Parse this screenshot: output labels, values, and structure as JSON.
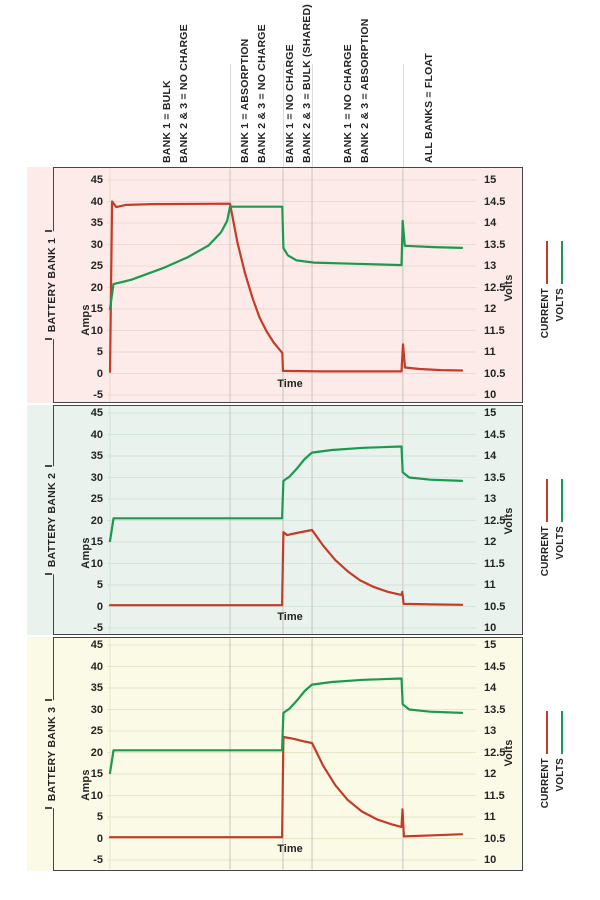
{
  "colors": {
    "current": "#c43b27",
    "volts": "#1a9a4e",
    "panel_border": "#444444",
    "phase_gridline": "#c9c3bd",
    "top_gridline": "#dcdcdc"
  },
  "phase_labels": [
    {
      "lines": [
        "BANK 1 = BULK",
        "BANK 2 & 3 = NO CHARGE"
      ]
    },
    {
      "lines": [
        "BANK 1 = ABSORPTION",
        "BANK 2 & 3 = NO CHARGE"
      ]
    },
    {
      "lines": [
        "BANK 1 = NO CHARGE",
        "BANK 2 & 3 = BULK (SHARED)"
      ]
    },
    {
      "lines": [
        "BANK 1 = NO CHARGE",
        "BANK 2 & 3 = ABSORPTION"
      ]
    },
    {
      "lines": [
        "ALL BANKS = FLOAT"
      ]
    }
  ],
  "panels": [
    {
      "bank_label": "BATTERY BANK 1",
      "bg": "#fcebe8",
      "grid_color": "#f0d8d2",
      "amps_axis": {
        "title": "Amps",
        "ticks": [
          "45",
          "40",
          "35",
          "30",
          "25",
          "20",
          "15",
          "10",
          "5",
          "0",
          "-5"
        ]
      },
      "volts_axis": {
        "title": "Volts",
        "ticks": [
          "15",
          "14.5",
          "14",
          "13.5",
          "13",
          "12.5",
          "12",
          "11.5",
          "11",
          "10.5",
          "10"
        ]
      },
      "x_axis_label": "Time",
      "legend": [
        {
          "label": "CURRENT",
          "color": "#c43b27"
        },
        {
          "label": "VOLTS",
          "color": "#1a9a4e"
        }
      ]
    },
    {
      "bank_label": "BATTERY BANK 2",
      "bg": "#e9f2ed",
      "grid_color": "#d3e4da",
      "amps_axis": {
        "title": "Amps",
        "ticks": [
          "45",
          "40",
          "35",
          "30",
          "25",
          "20",
          "15",
          "10",
          "5",
          "0",
          "-5"
        ]
      },
      "volts_axis": {
        "title": "Volts",
        "ticks": [
          "15",
          "14.5",
          "14",
          "13.5",
          "13",
          "12.5",
          "12",
          "11.5",
          "11",
          "10.5",
          "10"
        ]
      },
      "x_axis_label": "Time",
      "legend": [
        {
          "label": "CURRENT",
          "color": "#c43b27"
        },
        {
          "label": "VOLTS",
          "color": "#1a9a4e"
        }
      ]
    },
    {
      "bank_label": "BATTERY BANK 3",
      "bg": "#fbfae6",
      "grid_color": "#e6e6c8",
      "amps_axis": {
        "title": "Amps",
        "ticks": [
          "45",
          "40",
          "35",
          "30",
          "25",
          "20",
          "15",
          "10",
          "5",
          "0",
          "-5"
        ]
      },
      "volts_axis": {
        "title": "Volts",
        "ticks": [
          "15",
          "14.5",
          "14",
          "13.5",
          "13",
          "12.5",
          "12",
          "11.5",
          "11",
          "10.5",
          "10"
        ]
      },
      "x_axis_label": "Time",
      "legend": [
        {
          "label": "CURRENT",
          "color": "#c43b27"
        },
        {
          "label": "VOLTS",
          "color": "#1a9a4e"
        }
      ]
    }
  ],
  "chart_data": [
    {
      "type": "line",
      "title": "BATTERY BANK 1",
      "xlabel": "Time",
      "y_left": {
        "label": "Amps",
        "range": [
          -5,
          45
        ],
        "tick_step": 5
      },
      "y_right": {
        "label": "Volts",
        "range": [
          10,
          15
        ],
        "tick_step": 0.5
      },
      "grid": true,
      "legend_position": "right",
      "phase_boundaries_t": [
        0.341,
        0.4915,
        0.574,
        0.832
      ],
      "series": [
        {
          "name": "CURRENT",
          "axis": "left",
          "unit": "A",
          "color": "#c43b27",
          "points": [
            [
              0,
              0.4
            ],
            [
              0.006,
              40
            ],
            [
              0.018,
              38.7
            ],
            [
              0.045,
              39.2
            ],
            [
              0.12,
              39.4
            ],
            [
              0.341,
              39.5
            ],
            [
              0.362,
              30.5
            ],
            [
              0.383,
              23.5
            ],
            [
              0.405,
              17.5
            ],
            [
              0.425,
              13
            ],
            [
              0.445,
              9.8
            ],
            [
              0.465,
              7.2
            ],
            [
              0.478,
              5.9
            ],
            [
              0.4895,
              4.8
            ],
            [
              0.4915,
              0.6
            ],
            [
              0.6,
              0.5
            ],
            [
              0.828,
              0.5
            ],
            [
              0.8325,
              6.8
            ],
            [
              0.838,
              1.4
            ],
            [
              0.88,
              1.05
            ],
            [
              0.94,
              0.8
            ],
            [
              1,
              0.7
            ]
          ]
        },
        {
          "name": "VOLTS",
          "axis": "right",
          "unit": "V",
          "color": "#1a9a4e",
          "points": [
            [
              0,
              12.0
            ],
            [
              0.01,
              12.58
            ],
            [
              0.06,
              12.68
            ],
            [
              0.15,
              12.95
            ],
            [
              0.22,
              13.2
            ],
            [
              0.28,
              13.48
            ],
            [
              0.315,
              13.78
            ],
            [
              0.333,
              14.05
            ],
            [
              0.341,
              14.38
            ],
            [
              0.4895,
              14.38
            ],
            [
              0.4925,
              13.42
            ],
            [
              0.505,
              13.25
            ],
            [
              0.53,
              13.13
            ],
            [
              0.58,
              13.08
            ],
            [
              0.7,
              13.05
            ],
            [
              0.828,
              13.02
            ],
            [
              0.8315,
              14.05
            ],
            [
              0.8375,
              13.47
            ],
            [
              0.92,
              13.44
            ],
            [
              1,
              13.42
            ]
          ]
        }
      ]
    },
    {
      "type": "line",
      "title": "BATTERY BANK 2",
      "xlabel": "Time",
      "y_left": {
        "label": "Amps",
        "range": [
          -5,
          45
        ],
        "tick_step": 5
      },
      "y_right": {
        "label": "Volts",
        "range": [
          10,
          15
        ],
        "tick_step": 0.5
      },
      "grid": true,
      "legend_position": "right",
      "phase_boundaries_t": [
        0.341,
        0.4915,
        0.574,
        0.832
      ],
      "series": [
        {
          "name": "CURRENT",
          "axis": "left",
          "unit": "A",
          "color": "#c43b27",
          "points": [
            [
              0,
              0.3
            ],
            [
              0.489,
              0.3
            ],
            [
              0.4925,
              17.3
            ],
            [
              0.503,
              16.6
            ],
            [
              0.53,
              17.1
            ],
            [
              0.574,
              17.8
            ],
            [
              0.605,
              14.2
            ],
            [
              0.64,
              10.8
            ],
            [
              0.675,
              8.2
            ],
            [
              0.71,
              6.1
            ],
            [
              0.75,
              4.5
            ],
            [
              0.79,
              3.4
            ],
            [
              0.828,
              2.7
            ],
            [
              0.8305,
              3.4
            ],
            [
              0.834,
              0.6
            ],
            [
              0.91,
              0.5
            ],
            [
              1,
              0.4
            ]
          ]
        },
        {
          "name": "VOLTS",
          "axis": "right",
          "unit": "V",
          "color": "#1a9a4e",
          "points": [
            [
              0,
              12.02
            ],
            [
              0.01,
              12.55
            ],
            [
              0.489,
              12.55
            ],
            [
              0.4925,
              13.42
            ],
            [
              0.51,
              13.52
            ],
            [
              0.53,
              13.7
            ],
            [
              0.553,
              13.93
            ],
            [
              0.574,
              14.08
            ],
            [
              0.63,
              14.14
            ],
            [
              0.72,
              14.19
            ],
            [
              0.828,
              14.22
            ],
            [
              0.8315,
              13.62
            ],
            [
              0.85,
              13.5
            ],
            [
              0.91,
              13.45
            ],
            [
              1,
              13.42
            ]
          ]
        }
      ]
    },
    {
      "type": "line",
      "title": "BATTERY BANK 3",
      "xlabel": "Time",
      "y_left": {
        "label": "Amps",
        "range": [
          -5,
          45
        ],
        "tick_step": 5
      },
      "y_right": {
        "label": "Volts",
        "range": [
          10,
          15
        ],
        "tick_step": 0.5
      },
      "grid": true,
      "legend_position": "right",
      "phase_boundaries_t": [
        0.341,
        0.4915,
        0.574,
        0.832
      ],
      "series": [
        {
          "name": "CURRENT",
          "axis": "left",
          "unit": "A",
          "color": "#c43b27",
          "points": [
            [
              0,
              0.3
            ],
            [
              0.489,
              0.3
            ],
            [
              0.4925,
              23.6
            ],
            [
              0.52,
              23.2
            ],
            [
              0.55,
              22.6
            ],
            [
              0.574,
              22.2
            ],
            [
              0.605,
              17
            ],
            [
              0.64,
              12.4
            ],
            [
              0.675,
              9
            ],
            [
              0.715,
              6.3
            ],
            [
              0.76,
              4.4
            ],
            [
              0.8,
              3.3
            ],
            [
              0.828,
              2.7
            ],
            [
              0.831,
              6.8
            ],
            [
              0.835,
              0.5
            ],
            [
              0.92,
              0.75
            ],
            [
              1,
              1.0
            ]
          ]
        },
        {
          "name": "VOLTS",
          "axis": "right",
          "unit": "V",
          "color": "#1a9a4e",
          "points": [
            [
              0,
              12.02
            ],
            [
              0.01,
              12.55
            ],
            [
              0.489,
              12.55
            ],
            [
              0.4925,
              13.42
            ],
            [
              0.51,
              13.52
            ],
            [
              0.53,
              13.7
            ],
            [
              0.553,
              13.93
            ],
            [
              0.574,
              14.08
            ],
            [
              0.63,
              14.14
            ],
            [
              0.72,
              14.19
            ],
            [
              0.828,
              14.22
            ],
            [
              0.8315,
              13.62
            ],
            [
              0.85,
              13.5
            ],
            [
              0.91,
              13.45
            ],
            [
              1,
              13.42
            ]
          ]
        }
      ]
    }
  ]
}
